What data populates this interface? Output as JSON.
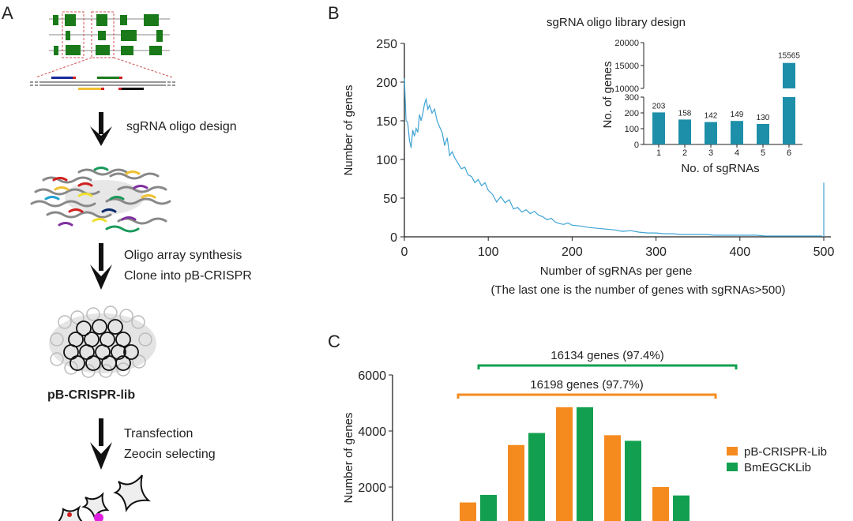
{
  "panels": {
    "a": {
      "label": "A",
      "steps": [
        {
          "lines": [
            "sgRNA oligo design"
          ]
        },
        {
          "lines": [
            "Oligo array synthesis",
            "Clone into pB-CRISPR"
          ]
        },
        {
          "lines": [
            "Transfection",
            "Zeocin selecting"
          ]
        }
      ],
      "library_name": "pB-CRISPR-lib"
    },
    "b": {
      "label": "B"
    },
    "c": {
      "label": "C"
    }
  },
  "colors": {
    "curve": "#3ea3d4",
    "inset_bar": "#1e8fa8",
    "orange": "#f58b1f",
    "green": "#12a050",
    "exon": "#1a7a1a"
  },
  "chart_data": [
    {
      "type": "line",
      "title": "sgRNA oligo library design",
      "xlabel": "Number of sgRNAs per gene",
      "xlabel_note": "(The last one is the number of genes with sgRNAs>500)",
      "ylabel": "Number of genes",
      "xlim": [
        0,
        500
      ],
      "ylim": [
        0,
        250
      ],
      "xticks": [
        "0",
        "100",
        "200",
        "300",
        "400",
        "500"
      ],
      "yticks": [
        "0",
        "50",
        "100",
        "150",
        "200",
        "250"
      ],
      "x": [
        0,
        2,
        4,
        6,
        8,
        10,
        12,
        14,
        16,
        18,
        20,
        22,
        24,
        26,
        28,
        30,
        33,
        36,
        39,
        42,
        45,
        48,
        51,
        54,
        57,
        60,
        64,
        68,
        72,
        76,
        80,
        84,
        88,
        92,
        96,
        100,
        105,
        110,
        115,
        120,
        125,
        130,
        135,
        140,
        145,
        150,
        155,
        160,
        165,
        170,
        175,
        180,
        185,
        190,
        195,
        200,
        210,
        220,
        230,
        240,
        250,
        260,
        270,
        280,
        290,
        300,
        310,
        320,
        330,
        340,
        350,
        360,
        370,
        380,
        390,
        400,
        410,
        420,
        430,
        440,
        450,
        460,
        470,
        480,
        490,
        498,
        500
      ],
      "y": [
        205,
        150,
        148,
        125,
        115,
        138,
        130,
        140,
        135,
        158,
        150,
        160,
        172,
        178,
        165,
        170,
        160,
        165,
        150,
        142,
        135,
        118,
        128,
        105,
        110,
        102,
        95,
        88,
        90,
        80,
        78,
        70,
        74,
        66,
        70,
        60,
        55,
        45,
        52,
        44,
        48,
        36,
        38,
        32,
        35,
        30,
        33,
        28,
        26,
        22,
        24,
        19,
        17,
        16,
        18,
        15,
        14,
        12,
        11,
        10,
        9,
        7,
        8,
        6,
        5,
        5,
        4,
        4,
        3,
        3,
        3,
        3,
        2,
        2,
        2,
        2,
        2,
        2,
        1,
        1,
        1,
        1,
        1,
        1,
        1,
        1,
        70
      ],
      "inset": {
        "type": "bar",
        "xlabel": "No. of sgRNAs",
        "ylabel": "No. of genes",
        "categories": [
          "1",
          "2",
          "3",
          "4",
          "5",
          "6"
        ],
        "values": [
          203,
          158,
          142,
          149,
          130,
          15565
        ],
        "data_labels": [
          "203",
          "158",
          "142",
          "149",
          "130",
          "15565"
        ],
        "y_lower_ticks": [
          "0",
          "100",
          "200",
          "300"
        ],
        "y_upper_ticks": [
          "10000",
          "15000",
          "20000"
        ],
        "axis_break": [
          300,
          10000
        ]
      }
    },
    {
      "type": "bar",
      "ylabel": "Number of genes",
      "ylim": [
        0,
        6000
      ],
      "yticks": [
        "2000",
        "4000",
        "6000"
      ],
      "series": [
        {
          "name": "pB-CRISPR-Lib",
          "values": [
            1450,
            3500,
            4850,
            3850,
            2000
          ]
        },
        {
          "name": "BmEGCKLib",
          "values": [
            1720,
            3930,
            4850,
            3650,
            1700
          ]
        }
      ],
      "legend": "right",
      "annotations": [
        "16134 genes (97.4%)",
        "16198 genes (97.7%)"
      ]
    }
  ]
}
